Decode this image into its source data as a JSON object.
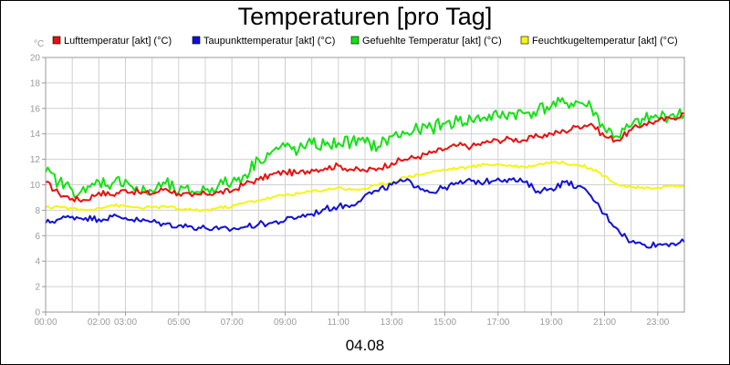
{
  "chart_data": {
    "type": "line",
    "title": "Temperaturen [pro Tag]",
    "ylabel": "°C",
    "xlabel": "04.08",
    "ylim": [
      0,
      20
    ],
    "yticks": [
      "0",
      "2",
      "4",
      "6",
      "8",
      "10",
      "12",
      "14",
      "16",
      "18",
      "20"
    ],
    "xlim_hours": [
      0,
      24
    ],
    "xticks": [
      {
        "h": 0,
        "label": "00:00"
      },
      {
        "h": 2,
        "label": "02:00"
      },
      {
        "h": 3,
        "label": "03:00"
      },
      {
        "h": 5,
        "label": "05:00"
      },
      {
        "h": 7,
        "label": "07:00"
      },
      {
        "h": 9,
        "label": "09:00"
      },
      {
        "h": 11,
        "label": "11:00"
      },
      {
        "h": 13,
        "label": "13:00"
      },
      {
        "h": 15,
        "label": "15:00"
      },
      {
        "h": 17,
        "label": "17:00"
      },
      {
        "h": 19,
        "label": "19:00"
      },
      {
        "h": 21,
        "label": "21:00"
      },
      {
        "h": 23,
        "label": "23:00"
      }
    ],
    "grid": true,
    "legend_position": "top",
    "x": [
      0,
      0.5,
      1,
      1.5,
      2,
      2.5,
      3,
      3.5,
      4,
      4.5,
      5,
      5.5,
      6,
      6.5,
      7,
      7.5,
      8,
      8.5,
      9,
      9.5,
      10,
      10.5,
      11,
      11.5,
      12,
      12.5,
      13,
      13.5,
      14,
      14.5,
      15,
      15.5,
      16,
      16.5,
      17,
      17.5,
      18,
      18.5,
      19,
      19.5,
      20,
      20.5,
      21,
      21.5,
      22,
      22.5,
      23,
      23.5,
      24
    ],
    "series": [
      {
        "name": "Lufttemperatur [akt] (°C)",
        "color": "#e81010",
        "values": [
          10.2,
          9.3,
          8.9,
          8.8,
          9.4,
          9.2,
          9.6,
          9.4,
          9.3,
          9.7,
          9.3,
          9.1,
          9.3,
          9.4,
          9.5,
          10.1,
          10.4,
          10.8,
          11.0,
          10.9,
          11.2,
          11.3,
          11.5,
          11.2,
          11.1,
          11.3,
          11.7,
          12.0,
          12.2,
          12.5,
          12.8,
          13.1,
          13.0,
          13.3,
          13.5,
          13.6,
          13.5,
          13.8,
          14.0,
          14.2,
          14.6,
          14.8,
          13.8,
          13.5,
          14.3,
          14.8,
          15.0,
          15.2,
          15.6
        ]
      },
      {
        "name": "Taupunkttemperatur [akt] (°C)",
        "color": "#1010d8",
        "values": [
          7.0,
          7.3,
          7.5,
          7.4,
          7.3,
          7.5,
          7.4,
          7.2,
          7.1,
          6.9,
          6.8,
          6.7,
          6.6,
          6.5,
          6.5,
          6.7,
          6.9,
          7.0,
          7.2,
          7.5,
          7.7,
          8.1,
          8.3,
          8.4,
          9.2,
          9.5,
          10.0,
          10.3,
          9.9,
          9.4,
          9.8,
          10.1,
          10.3,
          10.2,
          10.5,
          10.4,
          10.2,
          9.5,
          9.7,
          10.2,
          9.9,
          9.1,
          7.7,
          6.5,
          5.5,
          5.3,
          5.3,
          5.4,
          5.5
        ]
      },
      {
        "name": "Gefuehlte Temperatur [akt] (°C)",
        "color": "#16e016",
        "values": [
          11.0,
          10.2,
          9.6,
          9.4,
          10.3,
          10.1,
          10.4,
          9.4,
          9.5,
          10.1,
          9.4,
          9.5,
          9.6,
          10.0,
          10.2,
          10.8,
          12.0,
          12.6,
          13.0,
          12.7,
          13.2,
          13.1,
          13.3,
          13.4,
          13.3,
          13.0,
          13.8,
          14.0,
          14.3,
          14.5,
          14.8,
          15.0,
          15.1,
          15.3,
          15.4,
          15.6,
          15.6,
          15.9,
          16.2,
          16.4,
          16.5,
          16.1,
          14.4,
          13.8,
          14.6,
          15.1,
          15.3,
          15.5,
          15.5
        ]
      },
      {
        "name": "Feuchtkugeltemperatur [akt] (°C)",
        "color": "#f5f510",
        "values": [
          8.2,
          8.3,
          8.1,
          8.0,
          8.2,
          8.4,
          8.3,
          8.2,
          8.2,
          8.3,
          8.1,
          8.0,
          8.0,
          8.2,
          8.3,
          8.6,
          8.8,
          9.0,
          9.2,
          9.3,
          9.5,
          9.6,
          9.8,
          9.6,
          9.7,
          10.0,
          10.2,
          10.6,
          10.8,
          11.0,
          11.2,
          11.3,
          11.4,
          11.6,
          11.6,
          11.5,
          11.4,
          11.6,
          11.8,
          11.7,
          11.6,
          11.3,
          10.7,
          10.0,
          9.8,
          9.7,
          9.8,
          9.9,
          9.9
        ]
      }
    ],
    "date_label": "04.08"
  }
}
